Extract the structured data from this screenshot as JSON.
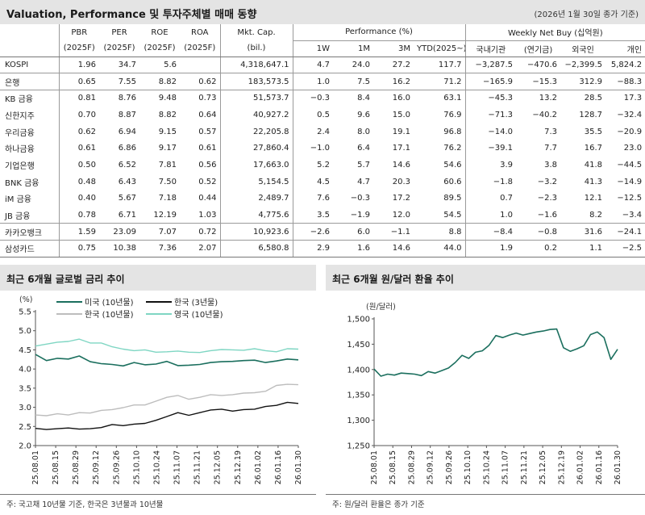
{
  "header": {
    "title": "Valuation, Performance 및 투자주체별 매매 동향",
    "note": "(2026년 1월 30일 종가 기준)"
  },
  "table": {
    "head1": [
      "",
      "PBR",
      "PER",
      "ROE",
      "ROA",
      "Mkt. Cap.",
      "Performance (%)",
      "Weekly Net Buy (십억원)"
    ],
    "head2": [
      "",
      "(2025F)",
      "(2025F)",
      "(2025F)",
      "(2025F)",
      "(bil.)",
      "1W",
      "1M",
      "3M",
      "YTD(2025~)",
      "국내기관",
      "(연기금)",
      "외국인",
      "개인"
    ],
    "rows": [
      [
        "KOSPI",
        "1.96",
        "34.7",
        "5.6",
        "",
        "4,318,647.1",
        "4.7",
        "24.0",
        "27.2",
        "117.7",
        "-3,287.5",
        "-470.6",
        "-2,399.5",
        "5,824.2"
      ],
      [
        "은행",
        "0.65",
        "7.55",
        "8.82",
        "0.62",
        "183,573.5",
        "1.0",
        "7.5",
        "16.2",
        "71.2",
        "-165.9",
        "-15.3",
        "312.9",
        "-88.3"
      ],
      [
        "KB 금융",
        "0.81",
        "8.76",
        "9.48",
        "0.73",
        "51,573.7",
        "-0.3",
        "8.4",
        "16.0",
        "63.1",
        "-45.3",
        "13.2",
        "28.5",
        "17.3"
      ],
      [
        "신한지주",
        "0.70",
        "8.87",
        "8.82",
        "0.64",
        "40,927.2",
        "0.5",
        "9.6",
        "15.0",
        "76.9",
        "-71.3",
        "-40.2",
        "128.7",
        "-32.4"
      ],
      [
        "우리금융",
        "0.62",
        "6.94",
        "9.15",
        "0.57",
        "22,205.8",
        "2.4",
        "8.0",
        "19.1",
        "96.8",
        "-14.0",
        "7.3",
        "35.5",
        "-20.9"
      ],
      [
        "하나금융",
        "0.61",
        "6.86",
        "9.17",
        "0.61",
        "27,860.4",
        "-1.0",
        "6.4",
        "17.1",
        "76.2",
        "-39.1",
        "7.7",
        "16.7",
        "23.0"
      ],
      [
        "기업은행",
        "0.50",
        "6.52",
        "7.81",
        "0.56",
        "17,663.0",
        "5.2",
        "5.7",
        "14.6",
        "54.6",
        "3.9",
        "3.8",
        "41.8",
        "-44.5"
      ],
      [
        "BNK 금융",
        "0.48",
        "6.43",
        "7.50",
        "0.52",
        "5,154.5",
        "4.5",
        "4.7",
        "20.3",
        "60.6",
        "-1.8",
        "-3.2",
        "41.3",
        "-14.9"
      ],
      [
        "iM 금융",
        "0.40",
        "5.67",
        "7.18",
        "0.44",
        "2,489.7",
        "7.6",
        "-0.3",
        "17.2",
        "89.5",
        "0.7",
        "-2.3",
        "12.1",
        "-12.5"
      ],
      [
        "JB 금융",
        "0.78",
        "6.71",
        "12.19",
        "1.03",
        "4,775.6",
        "3.5",
        "-1.9",
        "12.0",
        "54.5",
        "1.0",
        "-1.6",
        "8.2",
        "-3.4"
      ],
      [
        "카카오뱅크",
        "1.59",
        "23.09",
        "7.07",
        "0.72",
        "10,923.6",
        "-2.6",
        "6.0",
        "-1.1",
        "8.8",
        "-8.4",
        "-0.8",
        "31.6",
        "-24.1"
      ],
      [
        "삼성카드",
        "0.75",
        "10.38",
        "7.36",
        "2.07",
        "6,580.8",
        "2.9",
        "1.6",
        "14.6",
        "44.0",
        "1.9",
        "0.2",
        "1.1",
        "-2.5"
      ]
    ]
  },
  "left_chart": {
    "section_title": "최근 6개월 글로벌 금리 추이",
    "footnote": "주: 국고채 10년물 기준, 한국은 3년물과 10년물"
  },
  "right_chart": {
    "section_title": "최근 6개월 원/달러 환율 추이",
    "footnote": "주: 원/달러 환율은 종가 기준"
  },
  "chart_data": [
    {
      "type": "line",
      "unit_label": "(%)",
      "ylim": [
        2.0,
        5.5
      ],
      "yticks": [
        "2.0",
        "2.5",
        "3.0",
        "3.5",
        "4.0",
        "4.5",
        "5.0",
        "5.5"
      ],
      "xticks": [
        "25.08.01",
        "25.08.15",
        "25.08.29",
        "25.09.12",
        "25.09.26",
        "25.10.10",
        "25.10.24",
        "25.11.07",
        "25.11.21",
        "25.12.05",
        "25.12.19",
        "26.01.02",
        "26.01.16",
        "26.01.30"
      ],
      "legend_placement": "top",
      "series": [
        {
          "name": "미국 (10년물)",
          "color": "#1b6f5e",
          "width": 1.6,
          "values": [
            4.38,
            4.22,
            4.28,
            4.26,
            4.34,
            4.19,
            4.14,
            4.12,
            4.08,
            4.17,
            4.11,
            4.13,
            4.2,
            4.09,
            4.1,
            4.12,
            4.17,
            4.19,
            4.2,
            4.22,
            4.23,
            4.17,
            4.21,
            4.26,
            4.24
          ]
        },
        {
          "name": "한국 (3년물)",
          "color": "#111111",
          "width": 1.4,
          "values": [
            2.45,
            2.42,
            2.44,
            2.46,
            2.43,
            2.44,
            2.47,
            2.55,
            2.52,
            2.56,
            2.58,
            2.66,
            2.76,
            2.86,
            2.79,
            2.86,
            2.93,
            2.95,
            2.9,
            2.94,
            2.95,
            3.02,
            3.05,
            3.13,
            3.1
          ]
        },
        {
          "name": "한국 (10년물)",
          "color": "#bdbdbd",
          "width": 1.4,
          "values": [
            2.8,
            2.78,
            2.83,
            2.8,
            2.86,
            2.85,
            2.92,
            2.94,
            2.99,
            3.06,
            3.06,
            3.16,
            3.26,
            3.31,
            3.21,
            3.26,
            3.33,
            3.31,
            3.33,
            3.37,
            3.38,
            3.42,
            3.57,
            3.6,
            3.59
          ]
        },
        {
          "name": "영국 (10년물)",
          "color": "#7fd6c3",
          "width": 1.4,
          "values": [
            4.6,
            4.65,
            4.7,
            4.72,
            4.78,
            4.68,
            4.68,
            4.58,
            4.52,
            4.48,
            4.5,
            4.44,
            4.45,
            4.47,
            4.44,
            4.43,
            4.48,
            4.51,
            4.5,
            4.49,
            4.53,
            4.48,
            4.45,
            4.53,
            4.52
          ]
        }
      ]
    },
    {
      "type": "line",
      "unit_label": "(원/달러)",
      "ylim": [
        1250,
        1500
      ],
      "yticks": [
        "1,250",
        "1,300",
        "1,350",
        "1,400",
        "1,450",
        "1,500"
      ],
      "xticks": [
        "25.08.01",
        "25.08.15",
        "25.08.29",
        "25.09.12",
        "25.09.26",
        "25.10.10",
        "25.10.24",
        "25.11.07",
        "25.11.21",
        "25.12.05",
        "25.12.19",
        "26.01.02",
        "26.01.16",
        "26.01.30"
      ],
      "series": [
        {
          "name": "",
          "color": "#1b6f5e",
          "width": 1.6,
          "values": [
            1401,
            1387,
            1391,
            1389,
            1393,
            1392,
            1391,
            1388,
            1396,
            1393,
            1398,
            1403,
            1414,
            1428,
            1422,
            1434,
            1437,
            1448,
            1467,
            1463,
            1468,
            1472,
            1468,
            1471,
            1474,
            1476,
            1479,
            1480,
            1443,
            1436,
            1441,
            1447,
            1469,
            1474,
            1463,
            1420,
            1440
          ]
        }
      ]
    }
  ]
}
